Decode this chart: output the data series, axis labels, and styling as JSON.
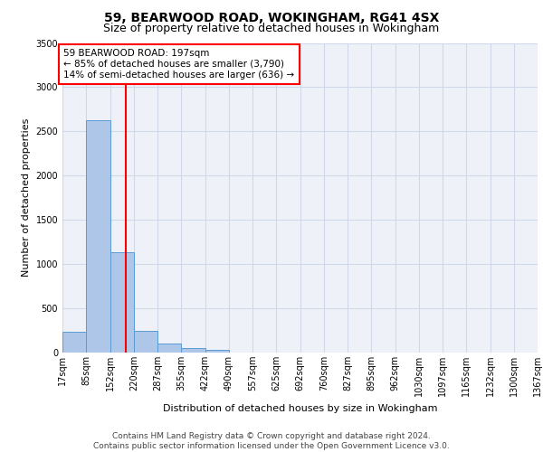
{
  "title_line1": "59, BEARWOOD ROAD, WOKINGHAM, RG41 4SX",
  "title_line2": "Size of property relative to detached houses in Wokingham",
  "xlabel": "Distribution of detached houses by size in Wokingham",
  "ylabel": "Number of detached properties",
  "bin_edges": [
    17,
    85,
    152,
    220,
    287,
    355,
    422,
    490,
    557,
    625,
    692,
    760,
    827,
    895,
    962,
    1030,
    1097,
    1165,
    1232,
    1300,
    1367
  ],
  "bin_labels": [
    "17sqm",
    "85sqm",
    "152sqm",
    "220sqm",
    "287sqm",
    "355sqm",
    "422sqm",
    "490sqm",
    "557sqm",
    "625sqm",
    "692sqm",
    "760sqm",
    "827sqm",
    "895sqm",
    "962sqm",
    "1030sqm",
    "1097sqm",
    "1165sqm",
    "1232sqm",
    "1300sqm",
    "1367sqm"
  ],
  "bar_heights": [
    230,
    2630,
    1130,
    250,
    100,
    50,
    30,
    0,
    0,
    0,
    0,
    0,
    0,
    0,
    0,
    0,
    0,
    0,
    0,
    0
  ],
  "bar_color": "#aec6e8",
  "bar_edge_color": "#5b9bd5",
  "grid_color": "#d0d8e8",
  "background_color": "#eef2f8",
  "red_line_x": 197,
  "annotation_text": "59 BEARWOOD ROAD: 197sqm\n← 85% of detached houses are smaller (3,790)\n14% of semi-detached houses are larger (636) →",
  "annotation_box_color": "white",
  "annotation_border_color": "red",
  "ylim": [
    0,
    3500
  ],
  "yticks": [
    0,
    500,
    1000,
    1500,
    2000,
    2500,
    3000,
    3500
  ],
  "footer_text": "Contains HM Land Registry data © Crown copyright and database right 2024.\nContains public sector information licensed under the Open Government Licence v3.0.",
  "title_fontsize": 10,
  "subtitle_fontsize": 9,
  "axis_label_fontsize": 8,
  "tick_fontsize": 7,
  "footer_fontsize": 6.5,
  "annotation_fontsize": 7.5
}
